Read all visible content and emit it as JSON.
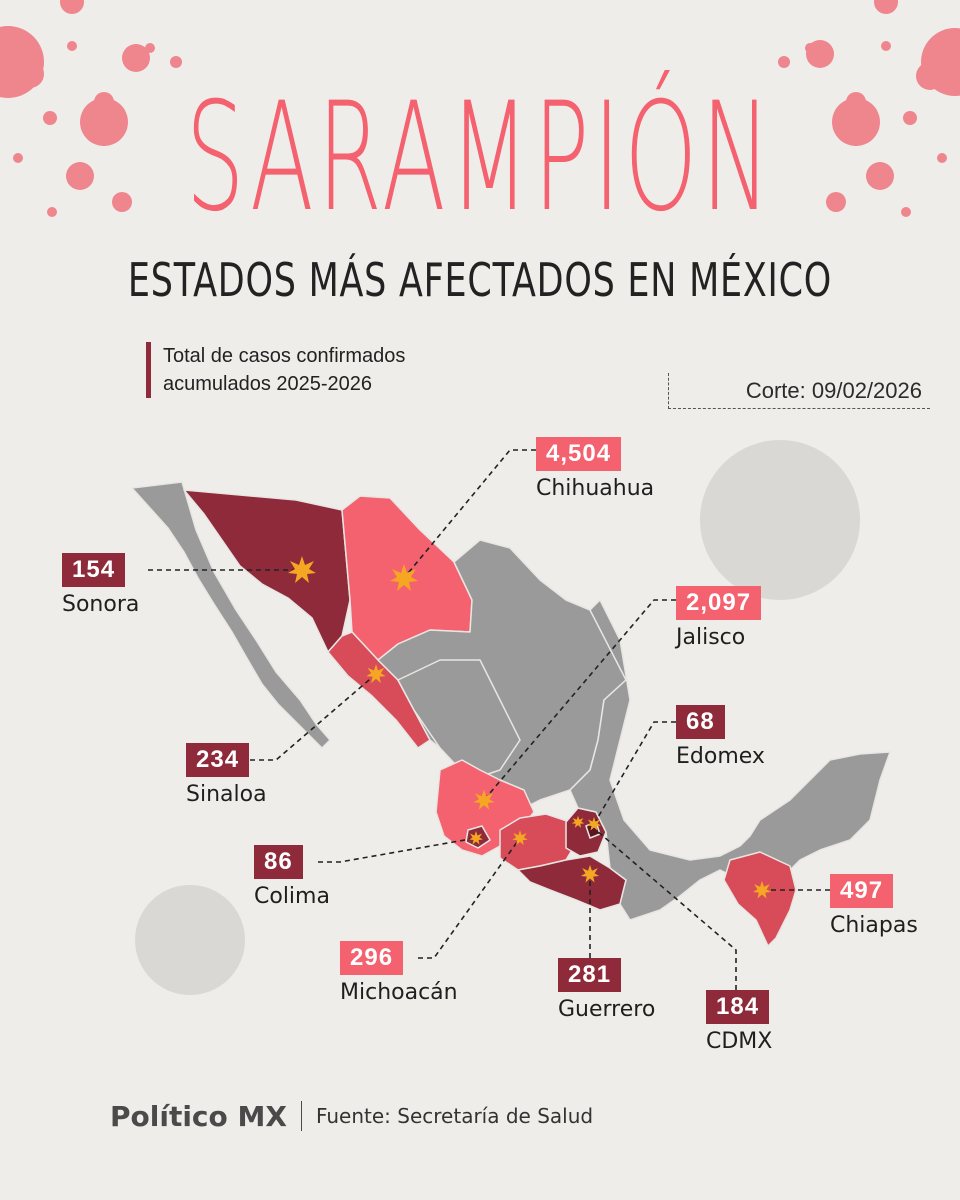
{
  "title": "SARAMPIÓN",
  "subtitle": "ESTADOS MÁS AFECTADOS EN MÉXICO",
  "caption": {
    "line1": "Total de casos confirmados",
    "line2": "acumulados 2025-2026"
  },
  "cutoff": "Corte: 09/02/2026",
  "colors": {
    "background": "#efedea",
    "title": "#f4616f",
    "dark_red": "#8e2a3a",
    "mid_red": "#d84b58",
    "light_red": "#f4616f",
    "gray_state": "#9a9a9a",
    "star": "#f5a623"
  },
  "states": [
    {
      "key": "chihuahua",
      "name": "Chihuahua",
      "cases": "4,504",
      "color": "#f4616f"
    },
    {
      "key": "jalisco",
      "name": "Jalisco",
      "cases": "2,097",
      "color": "#f4616f"
    },
    {
      "key": "edomex",
      "name": "Edomex",
      "cases": "68",
      "color": "#8e2a3a"
    },
    {
      "key": "chiapas",
      "name": "Chiapas",
      "cases": "497",
      "color": "#f4616f"
    },
    {
      "key": "cdmx",
      "name": "CDMX",
      "cases": "184",
      "color": "#8e2a3a"
    },
    {
      "key": "guerrero",
      "name": "Guerrero",
      "cases": "281",
      "color": "#8e2a3a"
    },
    {
      "key": "michoacan",
      "name": "Michoacán",
      "cases": "296",
      "color": "#f4616f"
    },
    {
      "key": "colima",
      "name": "Colima",
      "cases": "86",
      "color": "#8e2a3a"
    },
    {
      "key": "sinaloa",
      "name": "Sinaloa",
      "cases": "234",
      "color": "#8e2a3a"
    },
    {
      "key": "sonora",
      "name": "Sonora",
      "cases": "154",
      "color": "#8e2a3a"
    }
  ],
  "footer": {
    "brand": "Político MX",
    "source": "Fuente: Secretaría de Salud"
  }
}
